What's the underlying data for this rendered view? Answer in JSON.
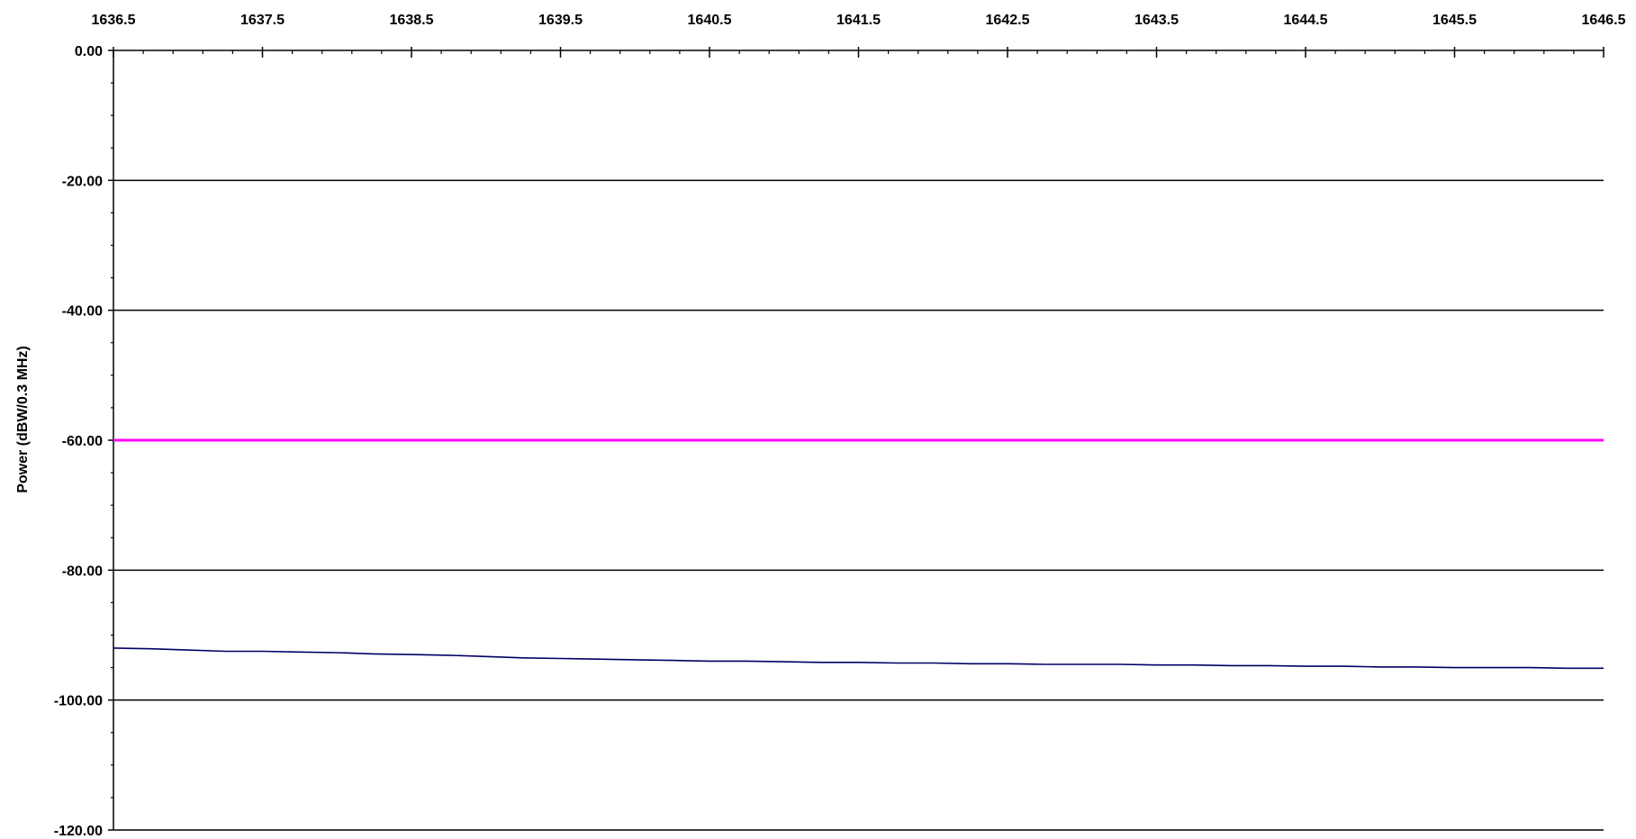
{
  "chart_data": {
    "type": "line",
    "title": "",
    "xlabel": "",
    "ylabel": "Power (dBW/0.3 MHz)",
    "xlim": [
      1636.5,
      1646.5
    ],
    "ylim": [
      -120,
      0
    ],
    "x_ticks": [
      "1636.5",
      "1637.5",
      "1638.5",
      "1639.5",
      "1640.5",
      "1641.5",
      "1642.5",
      "1643.5",
      "1644.5",
      "1645.5",
      "1646.5"
    ],
    "y_ticks": [
      "0.00",
      "-20.00",
      "-40.00",
      "-60.00",
      "-80.00",
      "-100.00",
      "-120.00"
    ],
    "x_axis_position": "top",
    "grid": "horizontal",
    "threshold": {
      "y": -60,
      "color": "#ff00ff"
    },
    "series": [
      {
        "color": "#000066",
        "x": [
          1636.5,
          1636.75,
          1637.0,
          1637.25,
          1637.5,
          1637.75,
          1638.0,
          1638.25,
          1638.5,
          1638.75,
          1639.0,
          1639.25,
          1639.5,
          1639.75,
          1640.0,
          1640.25,
          1640.5,
          1640.75,
          1641.0,
          1641.25,
          1641.5,
          1641.75,
          1642.0,
          1642.25,
          1642.5,
          1642.75,
          1643.0,
          1643.25,
          1643.5,
          1643.75,
          1644.0,
          1644.25,
          1644.5,
          1644.75,
          1645.0,
          1645.25,
          1645.5,
          1645.75,
          1646.0,
          1646.25,
          1646.5
        ],
        "values": [
          -92.0,
          -92.1,
          -92.3,
          -92.5,
          -92.5,
          -92.6,
          -92.7,
          -92.9,
          -93.0,
          -93.1,
          -93.3,
          -93.5,
          -93.6,
          -93.7,
          -93.8,
          -93.9,
          -94.0,
          -94.0,
          -94.1,
          -94.2,
          -94.2,
          -94.3,
          -94.3,
          -94.4,
          -94.4,
          -94.5,
          -94.5,
          -94.5,
          -94.6,
          -94.6,
          -94.7,
          -94.7,
          -94.8,
          -94.8,
          -94.9,
          -94.9,
          -95.0,
          -95.0,
          -95.0,
          -95.1,
          -95.1
        ]
      }
    ]
  }
}
